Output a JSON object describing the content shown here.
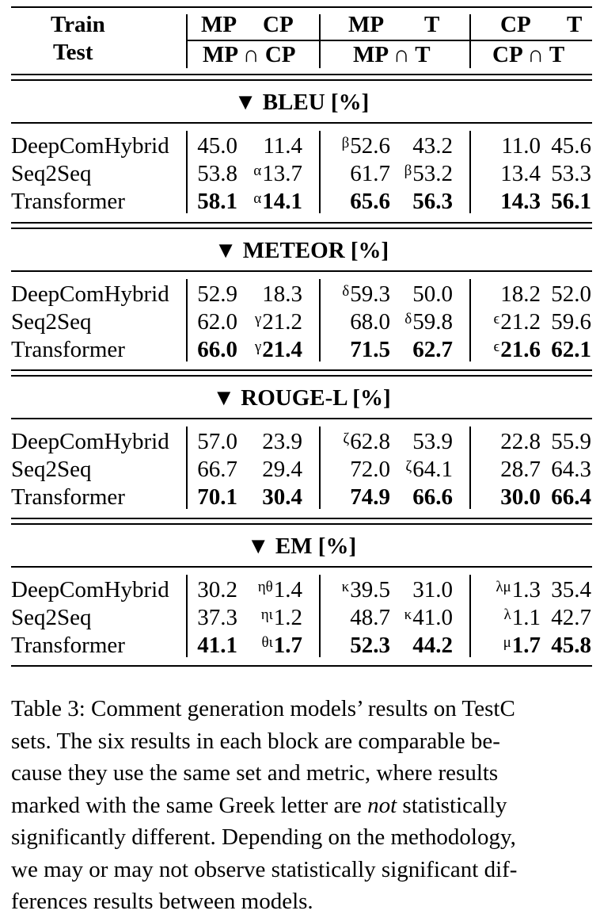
{
  "header": {
    "train_label": "Train",
    "test_label": "Test",
    "groups": [
      {
        "train_a": "MP",
        "train_b": "CP",
        "test": "MP ∩ CP"
      },
      {
        "train_a": "MP",
        "train_b": "T",
        "test": "MP ∩ T"
      },
      {
        "train_a": "CP",
        "train_b": "T",
        "test": "CP ∩ T"
      }
    ]
  },
  "sections": [
    {
      "title": "▼ BLEU [%]",
      "rows": [
        {
          "model": "DeepComHybrid",
          "cells": [
            {
              "sup": "",
              "val": "45.0",
              "bold": false
            },
            {
              "sup": "",
              "val": "11.4",
              "bold": false
            },
            {
              "sup": "β",
              "val": "52.6",
              "bold": false
            },
            {
              "sup": "",
              "val": "43.2",
              "bold": false
            },
            {
              "sup": "",
              "val": "11.0",
              "bold": false
            },
            {
              "sup": "",
              "val": "45.6",
              "bold": false
            }
          ]
        },
        {
          "model": "Seq2Seq",
          "cells": [
            {
              "sup": "",
              "val": "53.8",
              "bold": false
            },
            {
              "sup": "α",
              "val": "13.7",
              "bold": false
            },
            {
              "sup": "",
              "val": "61.7",
              "bold": false
            },
            {
              "sup": "β",
              "val": "53.2",
              "bold": false
            },
            {
              "sup": "",
              "val": "13.4",
              "bold": false
            },
            {
              "sup": "",
              "val": "53.3",
              "bold": false
            }
          ]
        },
        {
          "model": "Transformer",
          "cells": [
            {
              "sup": "",
              "val": "58.1",
              "bold": true
            },
            {
              "sup": "α",
              "val": "14.1",
              "bold": true
            },
            {
              "sup": "",
              "val": "65.6",
              "bold": true
            },
            {
              "sup": "",
              "val": "56.3",
              "bold": true
            },
            {
              "sup": "",
              "val": "14.3",
              "bold": true
            },
            {
              "sup": "",
              "val": "56.1",
              "bold": true
            }
          ]
        }
      ]
    },
    {
      "title": "▼ METEOR [%]",
      "rows": [
        {
          "model": "DeepComHybrid",
          "cells": [
            {
              "sup": "",
              "val": "52.9",
              "bold": false
            },
            {
              "sup": "",
              "val": "18.3",
              "bold": false
            },
            {
              "sup": "δ",
              "val": "59.3",
              "bold": false
            },
            {
              "sup": "",
              "val": "50.0",
              "bold": false
            },
            {
              "sup": "",
              "val": "18.2",
              "bold": false
            },
            {
              "sup": "",
              "val": "52.0",
              "bold": false
            }
          ]
        },
        {
          "model": "Seq2Seq",
          "cells": [
            {
              "sup": "",
              "val": "62.0",
              "bold": false
            },
            {
              "sup": "γ",
              "val": "21.2",
              "bold": false
            },
            {
              "sup": "",
              "val": "68.0",
              "bold": false
            },
            {
              "sup": "δ",
              "val": "59.8",
              "bold": false
            },
            {
              "sup": "ϵ",
              "val": "21.2",
              "bold": false
            },
            {
              "sup": "",
              "val": "59.6",
              "bold": false
            }
          ]
        },
        {
          "model": "Transformer",
          "cells": [
            {
              "sup": "",
              "val": "66.0",
              "bold": true
            },
            {
              "sup": "γ",
              "val": "21.4",
              "bold": true
            },
            {
              "sup": "",
              "val": "71.5",
              "bold": true
            },
            {
              "sup": "",
              "val": "62.7",
              "bold": true
            },
            {
              "sup": "ϵ",
              "val": "21.6",
              "bold": true
            },
            {
              "sup": "",
              "val": "62.1",
              "bold": true
            }
          ]
        }
      ]
    },
    {
      "title": "▼ ROUGE-L [%]",
      "rows": [
        {
          "model": "DeepComHybrid",
          "cells": [
            {
              "sup": "",
              "val": "57.0",
              "bold": false
            },
            {
              "sup": "",
              "val": "23.9",
              "bold": false
            },
            {
              "sup": "ζ",
              "val": "62.8",
              "bold": false
            },
            {
              "sup": "",
              "val": "53.9",
              "bold": false
            },
            {
              "sup": "",
              "val": "22.8",
              "bold": false
            },
            {
              "sup": "",
              "val": "55.9",
              "bold": false
            }
          ]
        },
        {
          "model": "Seq2Seq",
          "cells": [
            {
              "sup": "",
              "val": "66.7",
              "bold": false
            },
            {
              "sup": "",
              "val": "29.4",
              "bold": false
            },
            {
              "sup": "",
              "val": "72.0",
              "bold": false
            },
            {
              "sup": "ζ",
              "val": "64.1",
              "bold": false
            },
            {
              "sup": "",
              "val": "28.7",
              "bold": false
            },
            {
              "sup": "",
              "val": "64.3",
              "bold": false
            }
          ]
        },
        {
          "model": "Transformer",
          "cells": [
            {
              "sup": "",
              "val": "70.1",
              "bold": true
            },
            {
              "sup": "",
              "val": "30.4",
              "bold": true
            },
            {
              "sup": "",
              "val": "74.9",
              "bold": true
            },
            {
              "sup": "",
              "val": "66.6",
              "bold": true
            },
            {
              "sup": "",
              "val": "30.0",
              "bold": true
            },
            {
              "sup": "",
              "val": "66.4",
              "bold": true
            }
          ]
        }
      ]
    },
    {
      "title": "▼ EM [%]",
      "rows": [
        {
          "model": "DeepComHybrid",
          "cells": [
            {
              "sup": "",
              "val": "30.2",
              "bold": false
            },
            {
              "sup": "ηθ",
              "val": "1.4",
              "bold": false
            },
            {
              "sup": "κ",
              "val": "39.5",
              "bold": false
            },
            {
              "sup": "",
              "val": "31.0",
              "bold": false
            },
            {
              "sup": "λμ",
              "val": "1.3",
              "bold": false
            },
            {
              "sup": "",
              "val": "35.4",
              "bold": false
            }
          ]
        },
        {
          "model": "Seq2Seq",
          "cells": [
            {
              "sup": "",
              "val": "37.3",
              "bold": false
            },
            {
              "sup": "ηι",
              "val": "1.2",
              "bold": false
            },
            {
              "sup": "",
              "val": "48.7",
              "bold": false
            },
            {
              "sup": "κ",
              "val": "41.0",
              "bold": false
            },
            {
              "sup": "λ",
              "val": "1.1",
              "bold": false
            },
            {
              "sup": "",
              "val": "42.7",
              "bold": false
            }
          ]
        },
        {
          "model": "Transformer",
          "cells": [
            {
              "sup": "",
              "val": "41.1",
              "bold": true
            },
            {
              "sup": "θι",
              "val": "1.7",
              "bold": true
            },
            {
              "sup": "",
              "val": "52.3",
              "bold": true
            },
            {
              "sup": "",
              "val": "44.2",
              "bold": true
            },
            {
              "sup": "μ",
              "val": "1.7",
              "bold": true
            },
            {
              "sup": "",
              "val": "45.8",
              "bold": true
            }
          ]
        }
      ]
    }
  ],
  "caption": {
    "lines": [
      "Table 3: Comment generation models’ results on TestC",
      "sets.  The six results in each block are comparable be-",
      "cause they use the same set and metric, where results",
      "marked with the same Greek letter are ",
      "significantly different. Depending on the methodology,",
      "we may or may not observe statistically significant dif-",
      "ferences results between models."
    ],
    "emphasis": "not",
    "line4_tail": " statistically"
  }
}
